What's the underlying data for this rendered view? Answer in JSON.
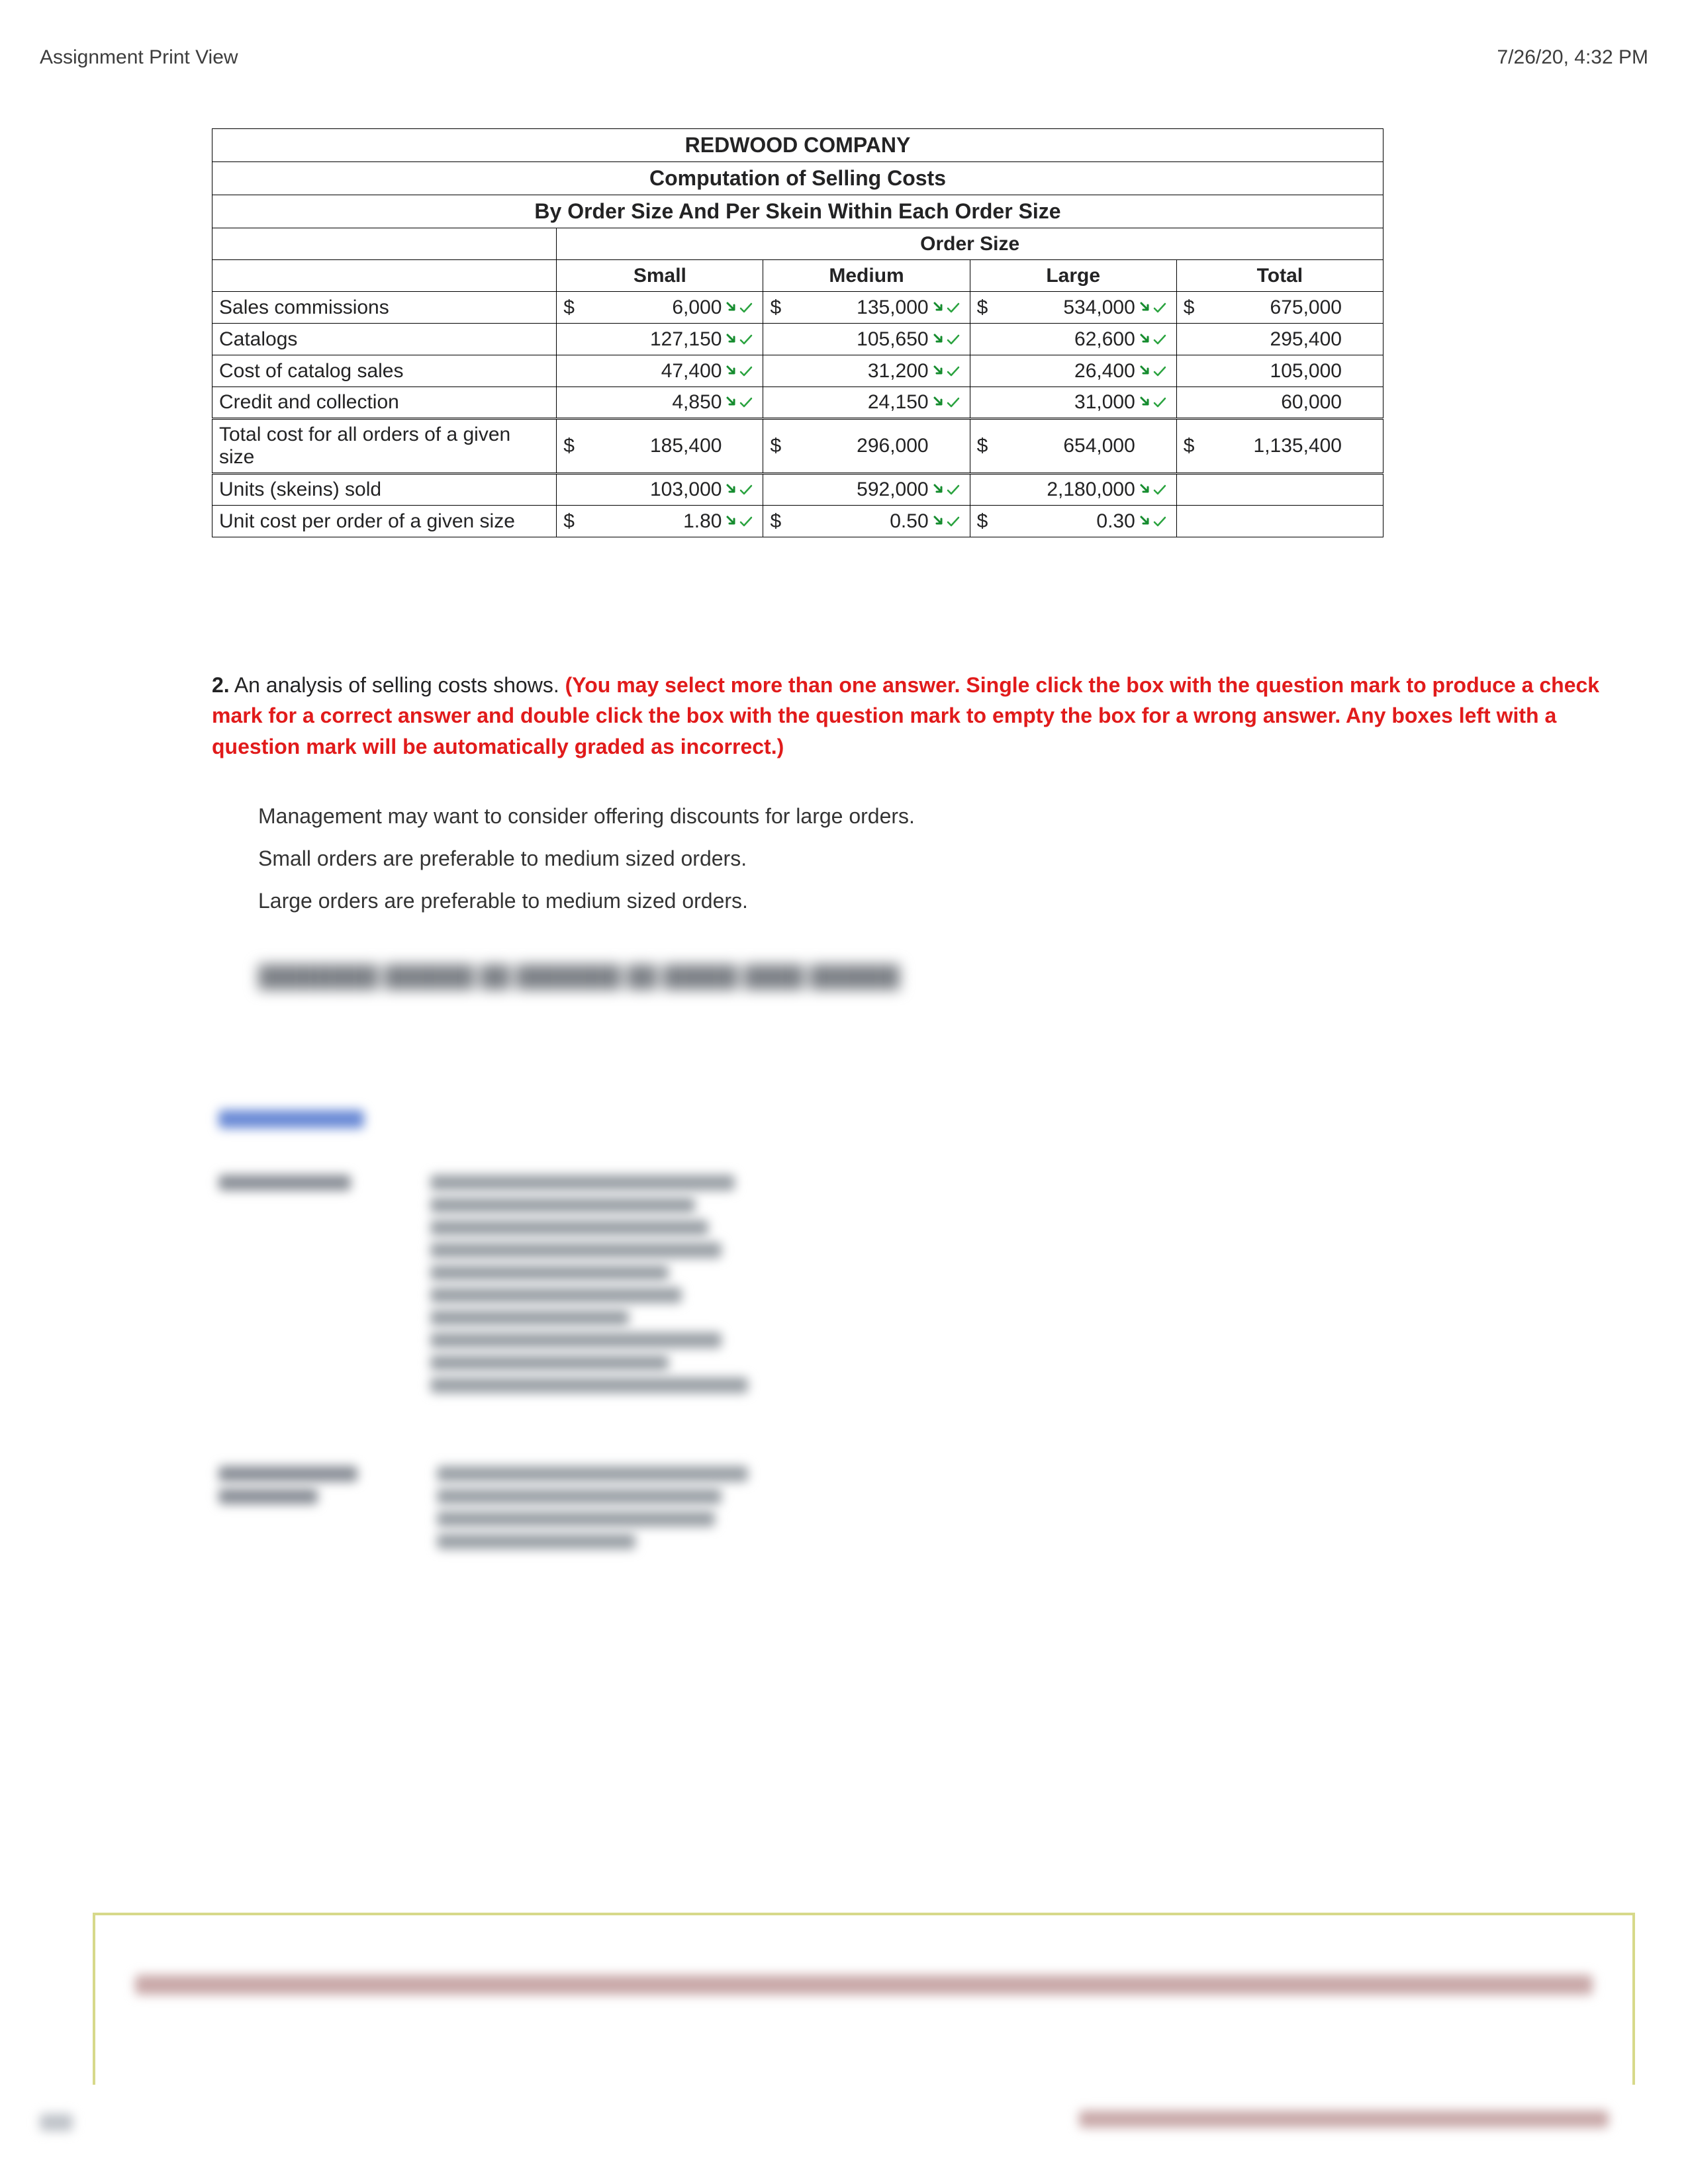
{
  "header": {
    "left": "Assignment Print View",
    "right": "7/26/20, 4:32 PM"
  },
  "table": {
    "title1": "REDWOOD COMPANY",
    "title2": "Computation of Selling Costs",
    "title3": "By Order Size And Per Skein Within Each Order Size",
    "order_size_label": "Order Size",
    "columns": [
      "Small",
      "Medium",
      "Large",
      "Total"
    ],
    "rows": [
      {
        "label": "Sales commissions",
        "cells": [
          {
            "dollar": true,
            "value": "6,000",
            "marks": true
          },
          {
            "dollar": true,
            "value": "135,000",
            "marks": true
          },
          {
            "dollar": true,
            "value": "534,000",
            "marks": true
          },
          {
            "dollar": true,
            "value": "675,000",
            "marks": false
          }
        ]
      },
      {
        "label": "Catalogs",
        "cells": [
          {
            "dollar": false,
            "value": "127,150",
            "marks": true
          },
          {
            "dollar": false,
            "value": "105,650",
            "marks": true
          },
          {
            "dollar": false,
            "value": "62,600",
            "marks": true
          },
          {
            "dollar": false,
            "value": "295,400",
            "marks": false
          }
        ]
      },
      {
        "label": "Cost of catalog sales",
        "cells": [
          {
            "dollar": false,
            "value": "47,400",
            "marks": true
          },
          {
            "dollar": false,
            "value": "31,200",
            "marks": true
          },
          {
            "dollar": false,
            "value": "26,400",
            "marks": true
          },
          {
            "dollar": false,
            "value": "105,000",
            "marks": false
          }
        ]
      },
      {
        "label": "Credit and collection",
        "cells": [
          {
            "dollar": false,
            "value": "4,850",
            "marks": true
          },
          {
            "dollar": false,
            "value": "24,150",
            "marks": true
          },
          {
            "dollar": false,
            "value": "31,000",
            "marks": true
          },
          {
            "dollar": false,
            "value": "60,000",
            "marks": false
          }
        ]
      },
      {
        "label": "Total cost for all orders of a given size",
        "double_top": true,
        "cells": [
          {
            "dollar": true,
            "value": "185,400",
            "marks": false
          },
          {
            "dollar": true,
            "value": "296,000",
            "marks": false
          },
          {
            "dollar": true,
            "value": "654,000",
            "marks": false
          },
          {
            "dollar": true,
            "value": "1,135,400",
            "marks": false
          }
        ]
      },
      {
        "label": "Units (skeins) sold",
        "double_top": true,
        "cells": [
          {
            "dollar": false,
            "value": "103,000",
            "marks": true
          },
          {
            "dollar": false,
            "value": "592,000",
            "marks": true
          },
          {
            "dollar": false,
            "value": "2,180,000",
            "marks": true
          },
          {
            "dollar": false,
            "value": "",
            "marks": false
          }
        ]
      },
      {
        "label": "Unit cost per order of a given size",
        "cells": [
          {
            "dollar": true,
            "value": "1.80",
            "marks": true
          },
          {
            "dollar": true,
            "value": "0.50",
            "marks": true
          },
          {
            "dollar": true,
            "value": "0.30",
            "marks": true
          },
          {
            "dollar": false,
            "value": "",
            "marks": false
          }
        ]
      }
    ]
  },
  "question": {
    "number": "2.",
    "lead": " An analysis of selling costs shows. ",
    "red": "(You may select more than one answer. Single click the box with the question mark to produce a check mark for a correct answer and double click the box with the question mark to empty the box for a wrong answer. Any boxes left with a question mark will be automatically graded as incorrect.)",
    "answers": [
      "Management may want to consider offering discounts for large orders.",
      "Small orders are preferable to medium sized orders.",
      "Large orders are preferable to medium sized orders."
    ]
  },
  "mark_colors": {
    "arrow": "#158c2e",
    "check": "#2aa33f"
  }
}
